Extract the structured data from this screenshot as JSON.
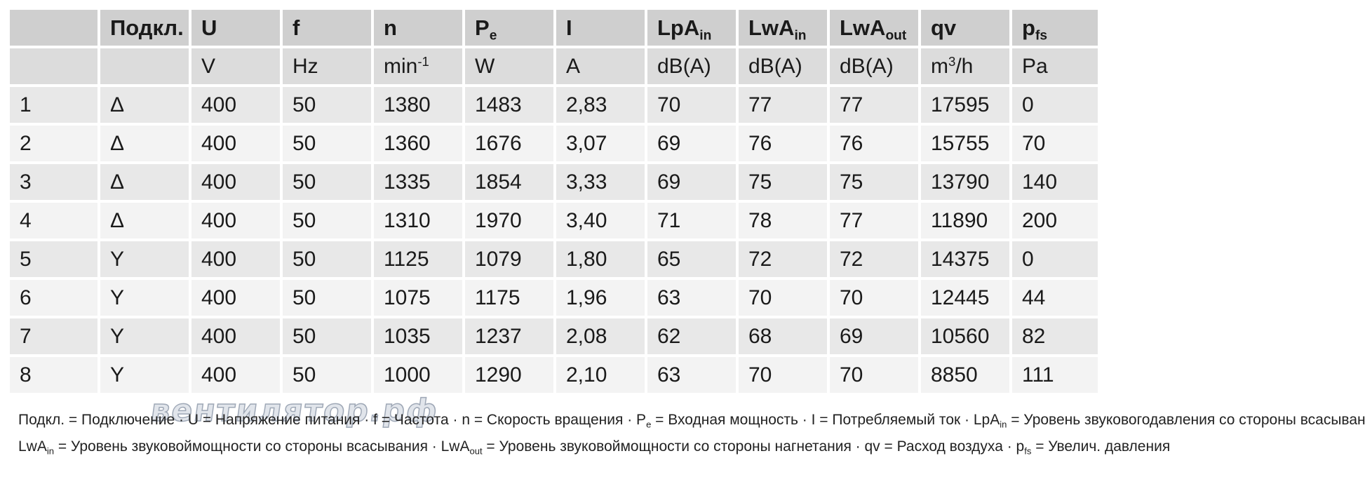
{
  "header": {
    "connection": "Подкл.",
    "U": "U",
    "f": "f",
    "n": "n",
    "Pe_main": "P",
    "Pe_sub": "e",
    "I": "I",
    "LpAin_main": "LpA",
    "LpAin_sub": "in",
    "LwAin_main": "LwA",
    "LwAin_sub": "in",
    "LwAout_main": "LwA",
    "LwAout_sub": "out",
    "qv": "qv",
    "pfs_main": "p",
    "pfs_sub": "fs"
  },
  "units": {
    "connection": "",
    "U": "V",
    "f": "Hz",
    "n_main": "min",
    "n_sup": "-1",
    "Pe": "W",
    "I": "A",
    "LpAin": "dB(A)",
    "LwAin": "dB(A)",
    "LwAout": "dB(A)",
    "qv_main": "m",
    "qv_sup": "3",
    "qv_rest": "/h",
    "pfs": "Pa"
  },
  "rows": [
    [
      "1",
      "Δ",
      "400",
      "50",
      "1380",
      "1483",
      "2,83",
      "70",
      "77",
      "77",
      "17595",
      "0"
    ],
    [
      "2",
      "Δ",
      "400",
      "50",
      "1360",
      "1676",
      "3,07",
      "69",
      "76",
      "76",
      "15755",
      "70"
    ],
    [
      "3",
      "Δ",
      "400",
      "50",
      "1335",
      "1854",
      "3,33",
      "69",
      "75",
      "75",
      "13790",
      "140"
    ],
    [
      "4",
      "Δ",
      "400",
      "50",
      "1310",
      "1970",
      "3,40",
      "71",
      "78",
      "77",
      "11890",
      "200"
    ],
    [
      "5",
      "Y",
      "400",
      "50",
      "1125",
      "1079",
      "1,80",
      "65",
      "72",
      "72",
      "14375",
      "0"
    ],
    [
      "6",
      "Y",
      "400",
      "50",
      "1075",
      "1175",
      "1,96",
      "63",
      "70",
      "70",
      "12445",
      "44"
    ],
    [
      "7",
      "Y",
      "400",
      "50",
      "1035",
      "1237",
      "2,08",
      "62",
      "68",
      "69",
      "10560",
      "82"
    ],
    [
      "8",
      "Y",
      "400",
      "50",
      "1000",
      "1290",
      "2,10",
      "63",
      "70",
      "70",
      "8850",
      "111"
    ]
  ],
  "legend": {
    "l1_a": "Подкл. = Подключение · U = Напряжение питания · f = Частота · n = Скорость вращения · P",
    "l1_a_sub": "e",
    "l1_b": " = Входная мощность · I = Потребляемый ток · LpA",
    "l1_b_sub": "in",
    "l1_c": " = Уровень звуковогодавления со стороны всасывания",
    "l2_a": "LwA",
    "l2_a_sub": "in",
    "l2_b": " = Уровень звуковоймощности со стороны всасывания · LwA",
    "l2_b_sub": "out",
    "l2_c": " = Уровень звуковоймощности со стороны нагнетания · qv = Расход воздуха · p",
    "l2_c_sub": "fs",
    "l2_d": " = Увелич. давления"
  },
  "watermark": "вентилятор.рф"
}
